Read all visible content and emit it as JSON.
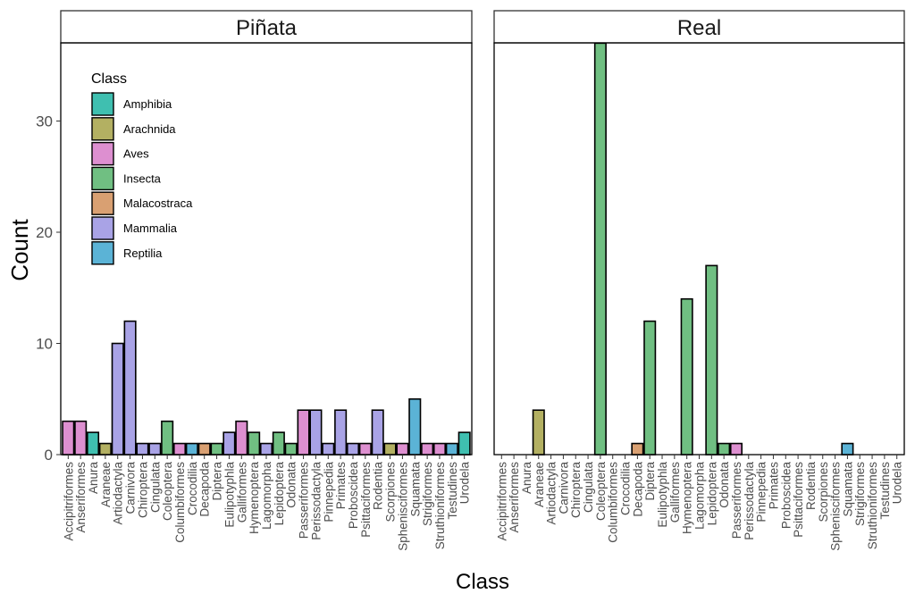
{
  "chart_data": {
    "type": "bar",
    "layout": "faceted",
    "ylabel": "Count",
    "xlabel": "Class",
    "ylim": [
      0,
      37
    ],
    "yticks": [
      0,
      10,
      20,
      30
    ],
    "grid": false,
    "categories": [
      "Accipitriformes",
      "Anseriformes",
      "Anura",
      "Araneae",
      "Artiodactyla",
      "Carnivora",
      "Chiroptera",
      "Cingulata",
      "Coleoptera",
      "Columbiformes",
      "Crocodilia",
      "Decapoda",
      "Diptera",
      "Eulipotyphla",
      "Galliformes",
      "Hymenoptera",
      "Lagomorpha",
      "Lepidoptera",
      "Odonata",
      "Passeriformes",
      "Perissodactyla",
      "Pinnepedia",
      "Primates",
      "Proboscidea",
      "Psittaciformes",
      "Rodentia",
      "Scorpiones",
      "Sphenisciformes",
      "Squamata",
      "Strigiformes",
      "Struthioniformes",
      "Testudines",
      "Urodela"
    ],
    "category_class": [
      "Aves",
      "Aves",
      "Amphibia",
      "Arachnida",
      "Mammalia",
      "Mammalia",
      "Mammalia",
      "Mammalia",
      "Insecta",
      "Aves",
      "Reptilia",
      "Malacostraca",
      "Insecta",
      "Mammalia",
      "Aves",
      "Insecta",
      "Mammalia",
      "Insecta",
      "Insecta",
      "Aves",
      "Mammalia",
      "Mammalia",
      "Mammalia",
      "Mammalia",
      "Aves",
      "Mammalia",
      "Arachnida",
      "Aves",
      "Reptilia",
      "Aves",
      "Aves",
      "Reptilia",
      "Amphibia"
    ],
    "legend": {
      "title": "Class",
      "position": "top-left",
      "entries": [
        {
          "label": "Amphibia",
          "color": "#3fbfb0"
        },
        {
          "label": "Arachnida",
          "color": "#b3b062"
        },
        {
          "label": "Aves",
          "color": "#dd8fd0"
        },
        {
          "label": "Insecta",
          "color": "#70bf82"
        },
        {
          "label": "Malacostraca",
          "color": "#d9a072"
        },
        {
          "label": "Mammalia",
          "color": "#a9a3e6"
        },
        {
          "label": "Reptilia",
          "color": "#5bb3d6"
        }
      ]
    },
    "facets": [
      {
        "title": "Piñata",
        "values": [
          3,
          3,
          2,
          1,
          10,
          12,
          1,
          1,
          3,
          1,
          1,
          1,
          1,
          2,
          3,
          2,
          1,
          2,
          1,
          4,
          4,
          1,
          4,
          1,
          1,
          4,
          1,
          1,
          5,
          1,
          1,
          1,
          2
        ]
      },
      {
        "title": "Real",
        "values": [
          0,
          0,
          0,
          4,
          0,
          0,
          0,
          0,
          37,
          0,
          0,
          1,
          12,
          0,
          0,
          14,
          0,
          17,
          1,
          1,
          0,
          0,
          0,
          0,
          0,
          0,
          0,
          0,
          1,
          0,
          0,
          0,
          0
        ]
      }
    ]
  }
}
